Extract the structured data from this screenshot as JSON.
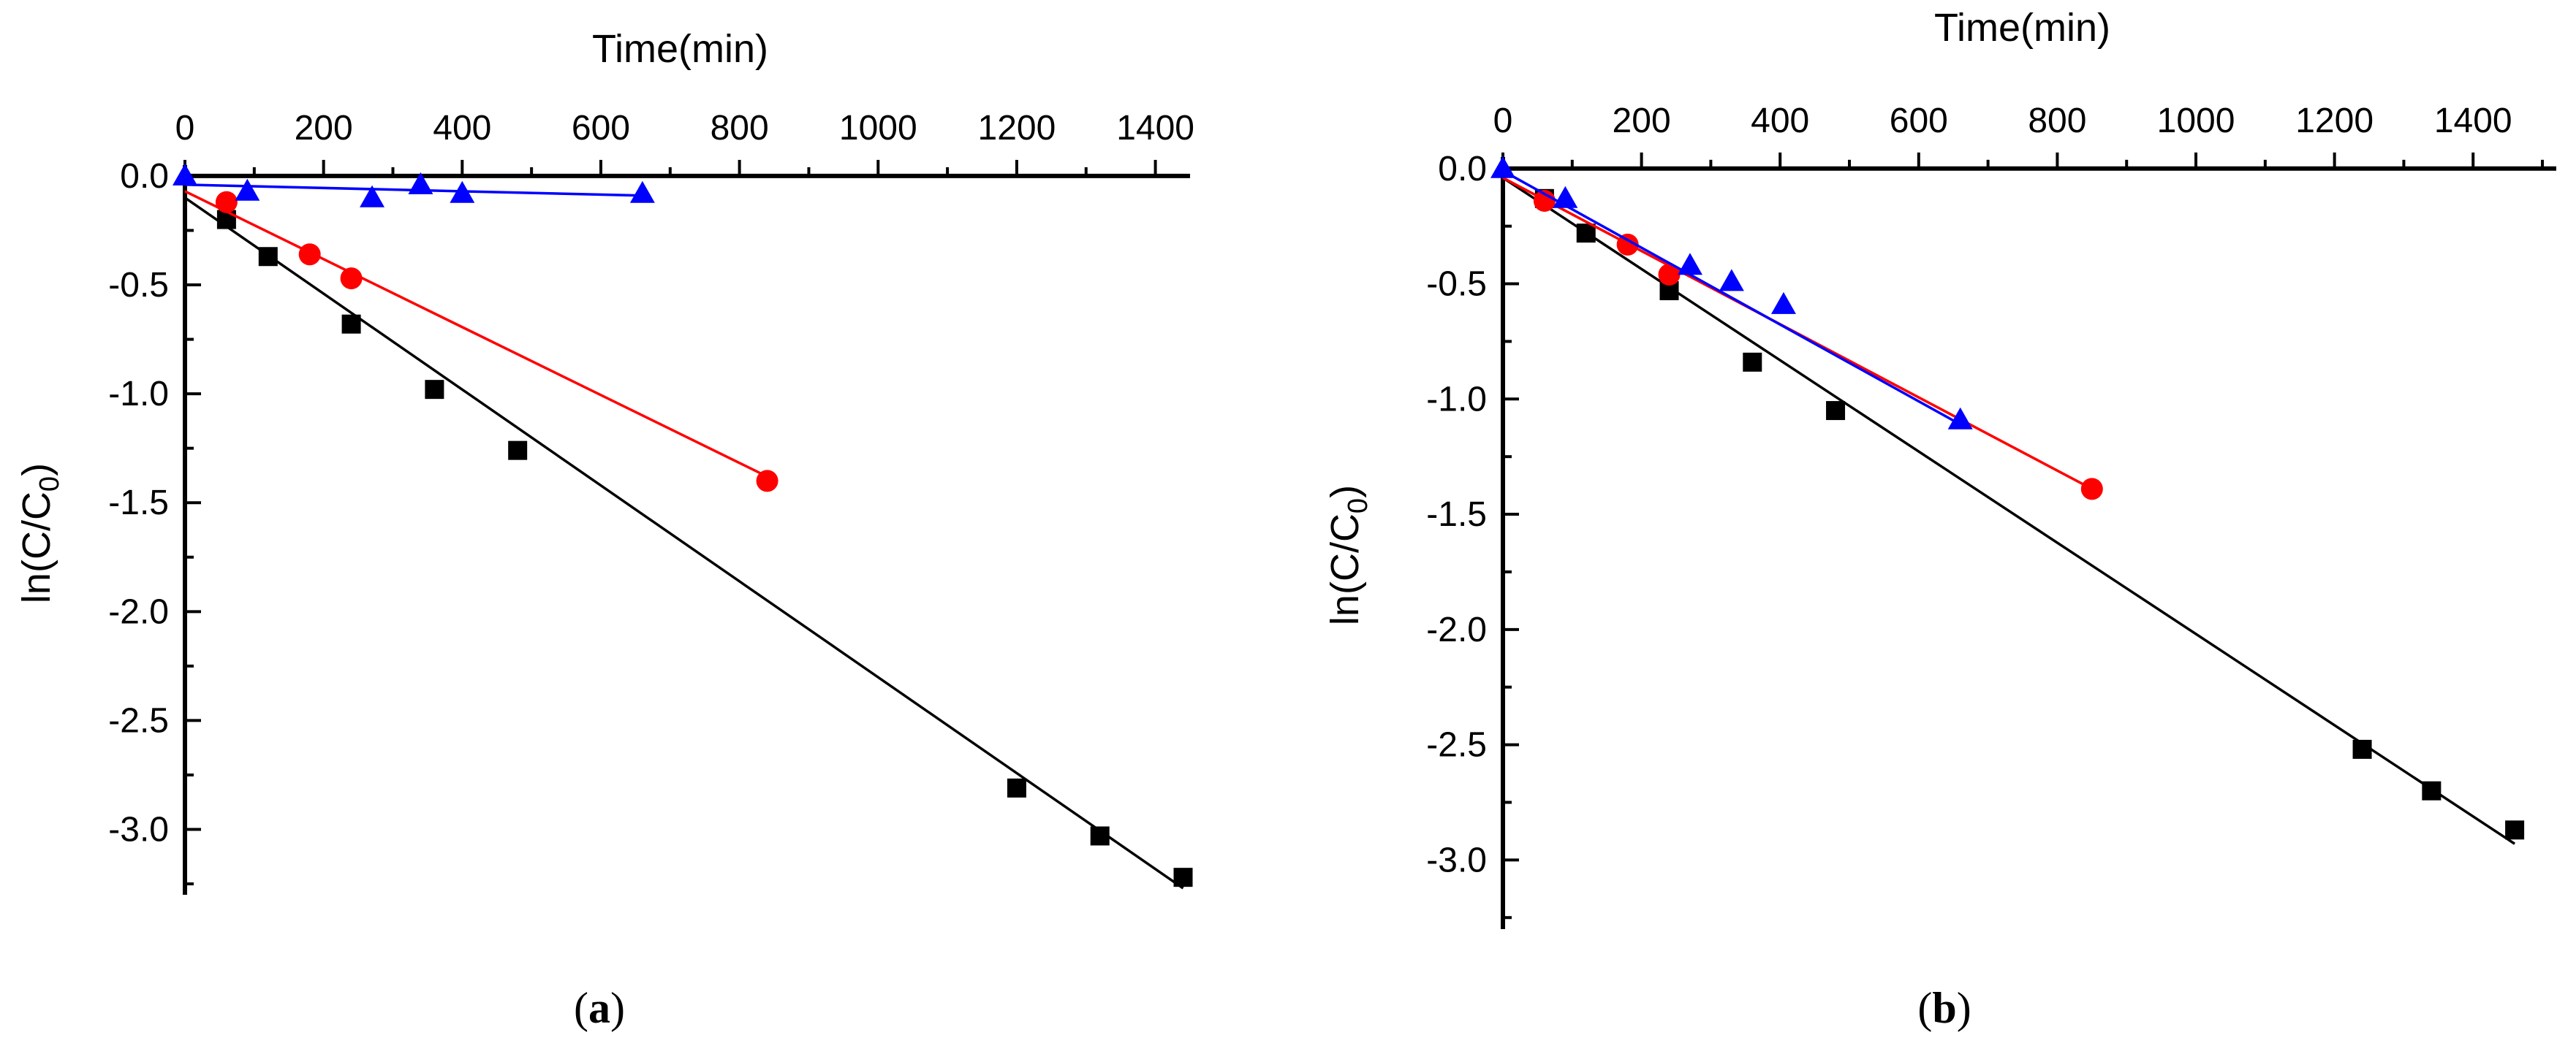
{
  "chart_data": [
    {
      "panel_label": "a",
      "type": "scatter",
      "title": "",
      "xlabel": "Time(min)",
      "ylabel_main": "ln(C/C",
      "ylabel_sub": "0",
      "ylabel_close": ")",
      "xlim": [
        0,
        1450
      ],
      "ylim": [
        -3.3,
        0.05
      ],
      "xticks": [
        0,
        200,
        400,
        600,
        800,
        1000,
        1200,
        1400
      ],
      "yticks": [
        0.0,
        -0.5,
        -1.0,
        -1.5,
        -2.0,
        -2.5,
        -3.0
      ],
      "ytick_labels": [
        "0.0",
        "-0.5",
        "-1.0",
        "-1.5",
        "-2.0",
        "-2.5",
        "-3.0"
      ],
      "grid": false,
      "series": [
        {
          "name": "black-squares",
          "marker": "square",
          "color": "#000000",
          "x": [
            60,
            120,
            240,
            360,
            480,
            1200,
            1320,
            1440
          ],
          "y": [
            -0.2,
            -0.37,
            -0.68,
            -0.98,
            -1.26,
            -2.81,
            -3.03,
            -3.22
          ],
          "fit_line": {
            "x": [
              0,
              1440
            ],
            "y": [
              -0.1,
              -3.27
            ]
          }
        },
        {
          "name": "red-circles",
          "marker": "circle",
          "color": "#ff0000",
          "x": [
            60,
            180,
            240,
            840
          ],
          "y": [
            -0.12,
            -0.36,
            -0.47,
            -1.4
          ],
          "fit_line": {
            "x": [
              0,
              840
            ],
            "y": [
              -0.07,
              -1.38
            ]
          }
        },
        {
          "name": "blue-triangles",
          "marker": "triangle",
          "color": "#0000ff",
          "x": [
            0,
            90,
            270,
            340,
            400,
            660
          ],
          "y": [
            0.0,
            -0.07,
            -0.1,
            -0.04,
            -0.08,
            -0.08
          ],
          "fit_line": {
            "x": [
              0,
              660
            ],
            "y": [
              -0.04,
              -0.09
            ]
          }
        }
      ]
    },
    {
      "panel_label": "b",
      "type": "scatter",
      "title": "",
      "xlabel": "Time(min)",
      "ylabel_main": "ln(C/C",
      "ylabel_sub": "0",
      "ylabel_close": ")",
      "xlim": [
        0,
        1520
      ],
      "ylim": [
        -3.3,
        0.05
      ],
      "xticks": [
        0,
        200,
        400,
        600,
        800,
        1000,
        1200,
        1400
      ],
      "yticks": [
        0.0,
        -0.5,
        -1.0,
        -1.5,
        -2.0,
        -2.5,
        -3.0
      ],
      "ytick_labels": [
        "0.0",
        "-0.5",
        "-1.0",
        "-1.5",
        "-2.0",
        "-2.5",
        "-3.0"
      ],
      "grid": false,
      "series": [
        {
          "name": "black-squares",
          "marker": "square",
          "color": "#000000",
          "x": [
            60,
            120,
            240,
            360,
            480,
            1240,
            1340,
            1460
          ],
          "y": [
            -0.13,
            -0.28,
            -0.53,
            -0.84,
            -1.05,
            -2.52,
            -2.7,
            -2.87
          ],
          "fit_line": {
            "x": [
              0,
              1460
            ],
            "y": [
              -0.04,
              -2.93
            ]
          }
        },
        {
          "name": "red-circles",
          "marker": "circle",
          "color": "#ff0000",
          "x": [
            60,
            180,
            240,
            850
          ],
          "y": [
            -0.14,
            -0.33,
            -0.46,
            -1.39
          ],
          "fit_line": {
            "x": [
              0,
              850
            ],
            "y": [
              -0.04,
              -1.39
            ]
          }
        },
        {
          "name": "blue-triangles",
          "marker": "triangle",
          "color": "#0000ff",
          "x": [
            0,
            90,
            270,
            330,
            405,
            660
          ],
          "y": [
            0.0,
            -0.13,
            -0.42,
            -0.49,
            -0.59,
            -1.09
          ],
          "fit_line": {
            "x": [
              0,
              660
            ],
            "y": [
              -0.01,
              -1.11
            ]
          }
        }
      ]
    }
  ]
}
